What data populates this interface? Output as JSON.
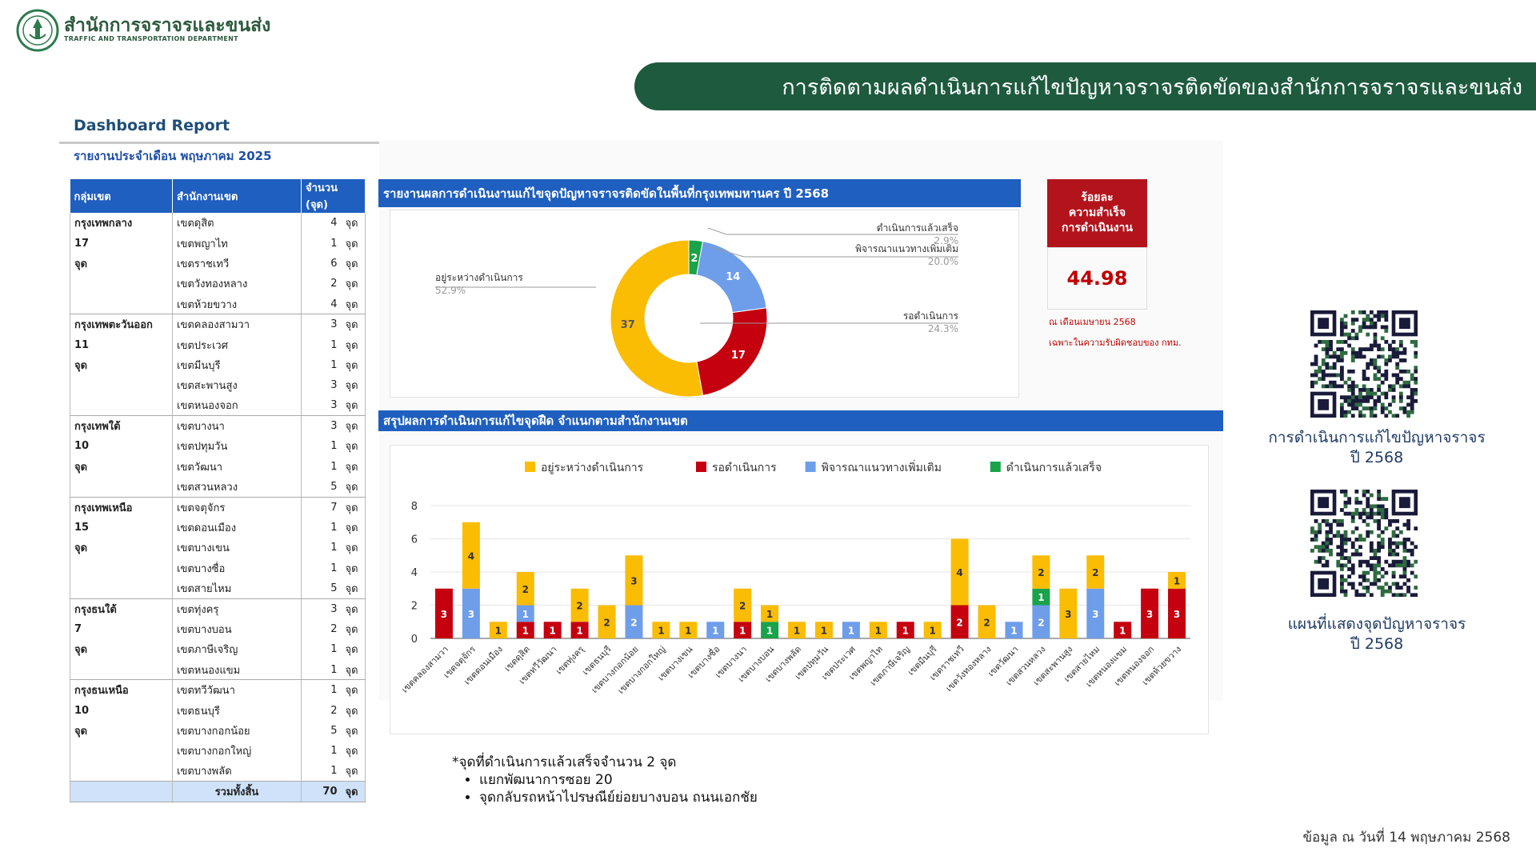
{
  "header": {
    "org_name": "สำนักการจราจรและขนส่ง",
    "org_sub": "TRAFFIC AND TRANSPORTATION DEPARTMENT",
    "banner": "การติดตามผลดำเนินการแก้ไขปัญหาจราจรติดขัดของสำนักการจราจรและขนส่ง"
  },
  "report": {
    "title": "Dashboard Report",
    "subtitle": "รายงานประจำเดือน พฤษภาคม 2025"
  },
  "table": {
    "headers": [
      "กลุ่มเขต",
      "สำนักงานเขต",
      "จำนวน (จุด)"
    ],
    "groups": [
      {
        "name": "กรุงเทพกลาง",
        "count": "17",
        "unit": "จุด",
        "rows": [
          [
            "เขตดุสิต",
            "4"
          ],
          [
            "เขตพญาไท",
            "1"
          ],
          [
            "เขตราชเทวี",
            "6"
          ],
          [
            "เขตวังทองหลาง",
            "2"
          ],
          [
            "เขตห้วยขวาง",
            "4"
          ]
        ]
      },
      {
        "name": "กรุงเทพตะวันออก",
        "count": "11",
        "unit": "จุด",
        "rows": [
          [
            "เขตคลองสามวา",
            "3"
          ],
          [
            "เขตประเวศ",
            "1"
          ],
          [
            "เขตมีนบุรี",
            "1"
          ],
          [
            "เขตสะพานสูง",
            "3"
          ],
          [
            "เขตหนองจอก",
            "3"
          ]
        ]
      },
      {
        "name": "กรุงเทพใต้",
        "count": "10",
        "unit": "จุด",
        "rows": [
          [
            "เขตบางนา",
            "3"
          ],
          [
            "เขตปทุมวัน",
            "1"
          ],
          [
            "เขตวัฒนา",
            "1"
          ],
          [
            "เขตสวนหลวง",
            "5"
          ]
        ]
      },
      {
        "name": "กรุงเทพเหนือ",
        "count": "15",
        "unit": "จุด",
        "rows": [
          [
            "เขตจตุจักร",
            "7"
          ],
          [
            "เขตดอนเมือง",
            "1"
          ],
          [
            "เขตบางเขน",
            "1"
          ],
          [
            "เขตบางซื่อ",
            "1"
          ],
          [
            "เขตสายไหม",
            "5"
          ]
        ]
      },
      {
        "name": "กรุงธนใต้",
        "count": "7",
        "unit": "จุด",
        "rows": [
          [
            "เขตทุ่งครุ",
            "3"
          ],
          [
            "เขตบางบอน",
            "2"
          ],
          [
            "เขตภาษีเจริญ",
            "1"
          ],
          [
            "เขตหนองแขม",
            "1"
          ]
        ]
      },
      {
        "name": "กรุงธนเหนือ",
        "count": "10",
        "unit": "จุด",
        "rows": [
          [
            "เขตทวีวัฒนา",
            "1"
          ],
          [
            "เขตธนบุรี",
            "2"
          ],
          [
            "เขตบางกอกน้อย",
            "5"
          ],
          [
            "เขตบางกอกใหญ่",
            "1"
          ],
          [
            "เขตบางพลัด",
            "1"
          ]
        ]
      }
    ],
    "unit": "จุด",
    "total_label": "รวมทั้งสิ้น",
    "total_value": "70"
  },
  "donut_panel_title": "รายงานผลการดำเนินงานแก้ไขจุดปัญหาจราจรติดขัดในพื้นที่กรุงเทพมหานคร ปี 2568",
  "bar_panel_title": "สรุปผลการดำเนินการแก้ไขจุดฝืด จำแนกตามสำนักงานเขต",
  "kpi": {
    "head": [
      "ร้อยละ",
      "ความสำเร็จ",
      "การดำเนินงาน"
    ],
    "value": "44.98",
    "note1": "ณ เดือนเมษายน 2568",
    "note2": "เฉพาะในความรับผิดชอบของ กทม."
  },
  "qr": [
    {
      "caption_line1": "การดำเนินการแก้ไขปัญหาจราจร",
      "caption_line2": "ปี 2568"
    },
    {
      "caption_line1": "แผนที่แสดงจุดปัญหาจราจร",
      "caption_line2": "ปี 2568"
    }
  ],
  "note": {
    "heading": "*จุดที่ดำเนินการแล้วเสร็จจำนวน 2 จุด",
    "items": [
      "แยกพัฒนาการซอย 20",
      "จุดกลับรถหน้าไปรษณีย์ย่อยบางบอน ถนนเอกชัย"
    ]
  },
  "footer": "ข้อมูล ณ วันที่ 14 พฤษภาคม 2568",
  "colors": {
    "in_progress": "#FBBC04",
    "pending": "#C5000F",
    "consider": "#6E9EEA",
    "done": "#1AA34A"
  },
  "chart_data": [
    {
      "type": "pie",
      "categories": [
        "อยู่ระหว่างดำเนินการ",
        "รอดำเนินการ",
        "พิจารณาแนวทางเพิ่มเติม",
        "ดำเนินการแล้วเสร็จ"
      ],
      "values": [
        37,
        17,
        14,
        2
      ],
      "percent_labels": [
        "52.9%",
        "24.3%",
        "20.0%",
        "2.9%"
      ]
    },
    {
      "type": "bar",
      "stacked": true,
      "ylim": [
        0,
        8
      ],
      "yticks": [
        0,
        2,
        4,
        6,
        8
      ],
      "legend": "top",
      "categories": [
        "เขตคลองสามวา",
        "เขตจตุจักร",
        "เขตดอนเมือง",
        "เขตดุสิต",
        "เขตทวีวัฒนา",
        "เขตทุ่งครุ",
        "เขตธนบุรี",
        "เขตบางกอกน้อย",
        "เขตบางกอกใหญ่",
        "เขตบางเขน",
        "เขตบางซื่อ",
        "เขตบางนา",
        "เขตบางบอน",
        "เขตบางพลัด",
        "เขตปทุมวัน",
        "เขตประเวศ",
        "เขตพญาไท",
        "เขตภาษีเจริญ",
        "เขตมีนบุรี",
        "เขตราชเทวี",
        "เขตวังทองหลาง",
        "เขตวัฒนา",
        "เขตสวนหลวง",
        "เขตสะพานสูง",
        "เขตสายไหม",
        "เขตหนองแขม",
        "เขตหนองจอก",
        "เขตห้วยขวาง"
      ],
      "series": [
        {
          "name": "รอดำเนินการ",
          "values": [
            3,
            0,
            0,
            1,
            1,
            1,
            0,
            0,
            0,
            0,
            0,
            1,
            0,
            0,
            0,
            0,
            0,
            1,
            0,
            2,
            0,
            0,
            0,
            0,
            0,
            1,
            3,
            3
          ]
        },
        {
          "name": "พิจารณาแนวทางเพิ่มเติม",
          "values": [
            0,
            3,
            0,
            1,
            0,
            0,
            0,
            2,
            0,
            0,
            1,
            0,
            0,
            0,
            0,
            1,
            0,
            0,
            0,
            0,
            0,
            1,
            2,
            0,
            3,
            0,
            0,
            0
          ]
        },
        {
          "name": "ดำเนินการแล้วเสร็จ",
          "values": [
            0,
            0,
            0,
            0,
            0,
            0,
            0,
            0,
            0,
            0,
            0,
            0,
            1,
            0,
            0,
            0,
            0,
            0,
            0,
            0,
            0,
            0,
            1,
            0,
            0,
            0,
            0,
            0
          ]
        },
        {
          "name": "อยู่ระหว่างดำเนินการ",
          "values": [
            0,
            4,
            1,
            2,
            0,
            2,
            2,
            3,
            1,
            1,
            0,
            2,
            1,
            1,
            1,
            0,
            1,
            0,
            1,
            4,
            2,
            0,
            2,
            3,
            2,
            0,
            0,
            1
          ]
        }
      ]
    }
  ]
}
